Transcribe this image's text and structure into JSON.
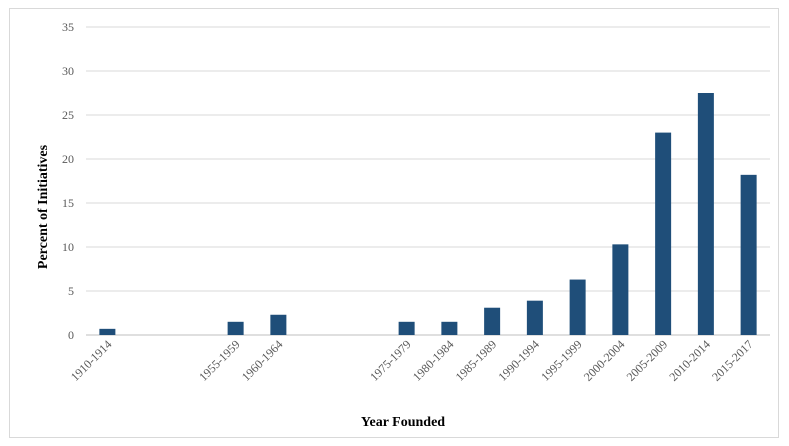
{
  "chart_data": {
    "type": "bar",
    "categories": [
      "1910-1914",
      "",
      "",
      "1955-1959",
      "1960-1964",
      "",
      "",
      "1975-1979",
      "1980-1984",
      "1985-1989",
      "1990-1994",
      "1995-1999",
      "2000-2004",
      "2005-2009",
      "2010-2014",
      "2015-2017"
    ],
    "values": [
      0.7,
      null,
      null,
      1.5,
      2.3,
      null,
      null,
      1.5,
      1.5,
      3.1,
      3.9,
      6.3,
      10.3,
      23.0,
      27.5,
      18.2
    ],
    "xlabel": "Year Founded",
    "ylabel": "Percent of Initiatives",
    "ylim": [
      0,
      35
    ],
    "yticks": [
      0,
      5,
      10,
      15,
      20,
      25,
      30,
      35
    ],
    "grid": true,
    "bar_color": "#1f4e79",
    "grid_color": "#d9d9d9"
  }
}
